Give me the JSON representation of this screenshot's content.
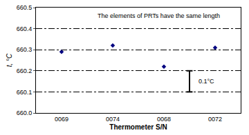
{
  "chart_data": {
    "type": "scatter",
    "annotations": [
      "The elements of PRTs have the same length"
    ],
    "x_label": "Thermometer S/N",
    "y_label": "t, °C",
    "categories": [
      "0069",
      "0074",
      "0068",
      "0072"
    ],
    "values": [
      660.29,
      660.32,
      660.22,
      660.31
    ],
    "color": "#000080",
    "marker": "diamond",
    "ylim": [
      660.0,
      660.5
    ],
    "yticks": [
      {
        "value": 660.0,
        "label": "660.0"
      },
      660.1,
      660.2,
      660.3,
      660.4,
      660.5
    ],
    "grid": true,
    "scale_bar": {
      "from": 660.1,
      "to": 660.2,
      "label": "0.1°C"
    }
  }
}
